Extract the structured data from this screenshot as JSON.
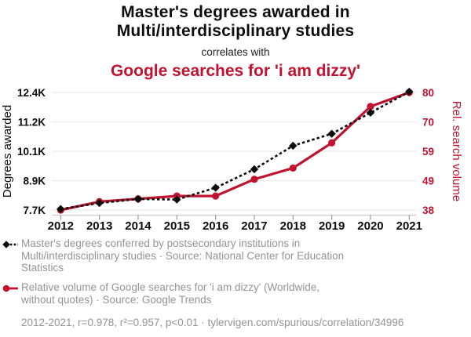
{
  "header": {
    "title_line1": "Master's degrees awarded in",
    "title_line2": "Multi/interdisciplinary studies",
    "connector": "correlates with",
    "subtitle": "Google searches for 'i am dizzy'"
  },
  "chart_data": {
    "type": "line",
    "x": [
      2012,
      2013,
      2014,
      2015,
      2016,
      2017,
      2018,
      2019,
      2020,
      2021
    ],
    "x_tick_labels": [
      "2012",
      "2013",
      "2014",
      "2015",
      "2016",
      "2017",
      "2018",
      "2019",
      "2020",
      "2021"
    ],
    "series": [
      {
        "name": "Master's degrees conferred by postsecondary institutions in Multi/interdisciplinary studies",
        "axis": "left",
        "color": "#0d0d0d",
        "line_style": "dashed",
        "marker": "diamond",
        "values": [
          7740,
          7980,
          8140,
          8120,
          8590,
          9330,
          10270,
          10750,
          11590,
          12430
        ]
      },
      {
        "name": "Relative volume of Google searches for 'i am dizzy'",
        "axis": "right",
        "color": "#c1122f",
        "line_style": "solid",
        "marker": "circle",
        "values": [
          38,
          41,
          42,
          43,
          43,
          49,
          53,
          62,
          75,
          80
        ]
      }
    ],
    "left_axis": {
      "label": "Degrees awarded",
      "tick_labels": [
        "7.7K",
        "8.9K",
        "10.1K",
        "11.2K",
        "12.4K"
      ],
      "min": 7700,
      "max": 12400
    },
    "right_axis": {
      "label": "Rel. search volume",
      "tick_labels": [
        "38",
        "49",
        "59",
        "70",
        "80"
      ],
      "min": 38,
      "max": 80
    },
    "grid": true,
    "legend_position": "bottom"
  },
  "legend": {
    "items": [
      {
        "marker": "black-diamond-dashed-line",
        "color": "#0d0d0d",
        "text": "Master's degrees conferred by postsecondary institutions in Multi/interdisciplinary studies · Source: National Center for Education Statistics"
      },
      {
        "marker": "red-circle-solid-line",
        "color": "#c1122f",
        "text": "Relative volume of Google searches for 'i am dizzy' (Worldwide, without quotes) · Source: Google Trends"
      }
    ]
  },
  "footer": {
    "text": "2012-2021, r=0.978, r²=0.957, p<0.01 · tylervigen.com/spurious/correlation/34996"
  },
  "colors": {
    "accent_red": "#c1122f",
    "text_black": "#0d0d0d",
    "text_muted": "#949494",
    "grid": "#ebebeb",
    "axis_line": "#cccccc",
    "tick": "#999999"
  }
}
